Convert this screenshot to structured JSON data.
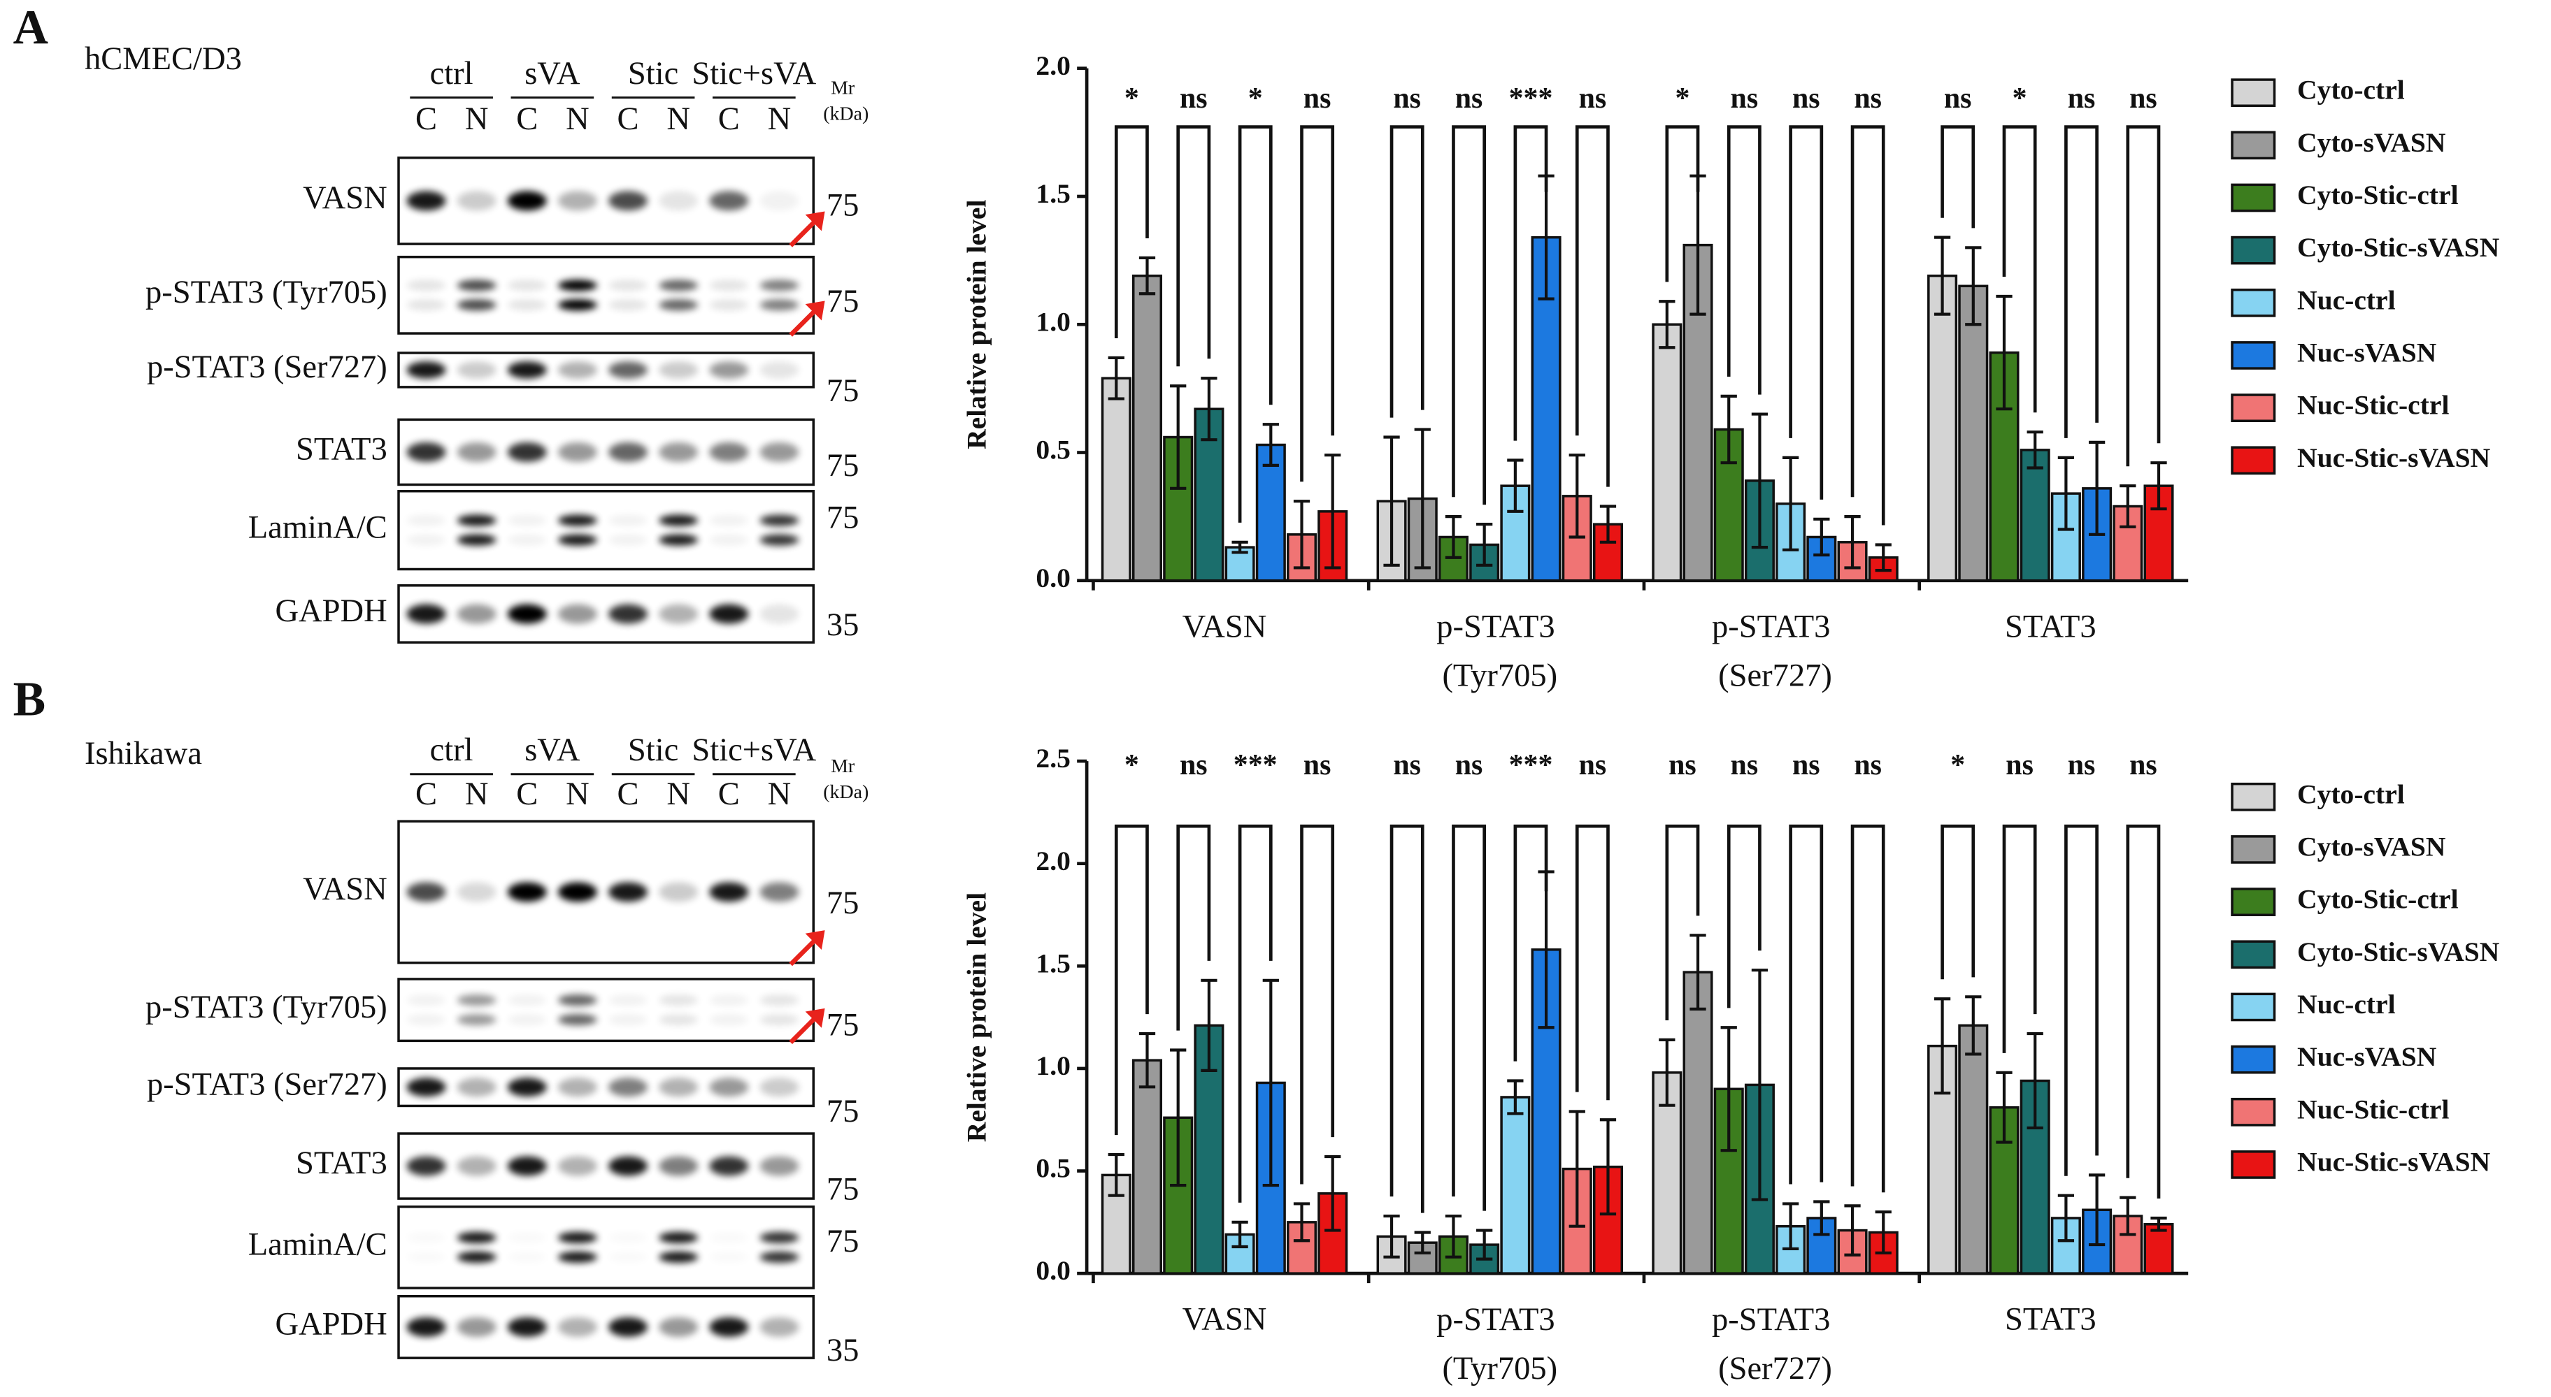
{
  "panels": [
    {
      "letter": "A",
      "cell_line": "hCMEC/D3",
      "groups": [
        "ctrl",
        "sVA",
        "Stic",
        "Stic+sVA"
      ],
      "lanes": [
        "C",
        "N",
        "C",
        "N",
        "C",
        "N",
        "C",
        "N"
      ],
      "mr": "Mr",
      "kda": "(kDa)",
      "rows": [
        {
          "label": "VASN",
          "mw": 75
        },
        {
          "label": "p-STAT3 (Tyr705)",
          "mw": 75
        },
        {
          "label": "p-STAT3 (Ser727)",
          "mw": 75
        },
        {
          "label": "STAT3",
          "mw": 75
        },
        {
          "label": "LaminA/C",
          "mw": 75
        },
        {
          "label": "GAPDH",
          "mw": 35
        }
      ]
    },
    {
      "letter": "B",
      "cell_line": "Ishikawa",
      "groups": [
        "ctrl",
        "sVA",
        "Stic",
        "Stic+sVA"
      ],
      "lanes": [
        "C",
        "N",
        "C",
        "N",
        "C",
        "N",
        "C",
        "N"
      ],
      "mr": "Mr",
      "kda": "(kDa)",
      "rows": [
        {
          "label": "VASN",
          "mw": 75
        },
        {
          "label": "p-STAT3 (Tyr705)",
          "mw": 75
        },
        {
          "label": "p-STAT3 (Ser727)",
          "mw": 75
        },
        {
          "label": "STAT3",
          "mw": 75
        },
        {
          "label": "LaminA/C",
          "mw": 75
        },
        {
          "label": "GAPDH",
          "mw": 35
        }
      ]
    }
  ],
  "chart_data": [
    {
      "type": "bar",
      "y_label": "Relative protein level",
      "categories": [
        "VASN",
        "p-STAT3 (Tyr705)",
        "p-STAT3 (Ser727)",
        "STAT3"
      ],
      "ylim": [
        0,
        2.0
      ],
      "yticks": [
        {
          "value": 0,
          "label": "0.0"
        },
        0.5,
        {
          "value": 1.0,
          "label": "1.0"
        },
        1.5,
        {
          "value": 2.0,
          "label": "2.0"
        }
      ],
      "series": [
        {
          "name": "Cyto-ctrl",
          "color": "#d4d4d4",
          "values": [
            0.79,
            0.31,
            1.0,
            1.19
          ],
          "errors": [
            0.08,
            0.25,
            0.09,
            0.15
          ]
        },
        {
          "name": "Cyto-sVASN",
          "color": "#9a9a9a",
          "values": [
            1.19,
            0.32,
            1.31,
            1.15
          ],
          "errors": [
            0.07,
            0.27,
            0.27,
            0.15
          ]
        },
        {
          "name": "Cyto-Stic-ctrl",
          "color": "#3c7d1e",
          "values": [
            0.56,
            0.17,
            0.59,
            0.89
          ],
          "errors": [
            0.2,
            0.08,
            0.13,
            0.22
          ]
        },
        {
          "name": "Cyto-Stic-sVASN",
          "color": "#1b6e6c",
          "values": [
            0.67,
            0.14,
            0.39,
            0.51
          ],
          "errors": [
            0.12,
            0.08,
            0.26,
            0.07
          ]
        },
        {
          "name": "Nuc-ctrl",
          "color": "#86d3f2",
          "values": [
            0.13,
            0.37,
            0.3,
            0.34
          ],
          "errors": [
            0.02,
            0.1,
            0.18,
            0.14
          ]
        },
        {
          "name": "Nuc-sVASN",
          "color": "#1c79e0",
          "values": [
            0.53,
            1.34,
            0.17,
            0.36
          ],
          "errors": [
            0.08,
            0.24,
            0.07,
            0.18
          ]
        },
        {
          "name": "Nuc-Stic-ctrl",
          "color": "#f07474",
          "values": [
            0.18,
            0.33,
            0.15,
            0.29
          ],
          "errors": [
            0.13,
            0.16,
            0.1,
            0.08
          ]
        },
        {
          "name": "Nuc-Stic-sVASN",
          "color": "#e81414",
          "values": [
            0.27,
            0.22,
            0.09,
            0.37
          ],
          "errors": [
            0.22,
            0.07,
            0.05,
            0.09
          ]
        }
      ],
      "significance": [
        [
          "*",
          "ns",
          "*",
          "ns"
        ],
        [
          "ns",
          "ns",
          "***",
          "ns"
        ],
        [
          "*",
          "ns",
          "ns",
          "ns"
        ],
        [
          "ns",
          "*",
          "ns",
          "ns"
        ]
      ]
    },
    {
      "type": "bar",
      "y_label": "Relative protein level",
      "categories": [
        "VASN",
        "p-STAT3 (Tyr705)",
        "p-STAT3 (Ser727)",
        "STAT3"
      ],
      "ylim": [
        0,
        2.5
      ],
      "yticks": [
        {
          "value": 0,
          "label": "0.0"
        },
        0.5,
        {
          "value": 1.0,
          "label": "1.0"
        },
        1.5,
        {
          "value": 2.0,
          "label": "2.0"
        },
        2.5
      ],
      "series": [
        {
          "name": "Cyto-ctrl",
          "color": "#d4d4d4",
          "values": [
            0.48,
            0.18,
            0.98,
            1.11
          ],
          "errors": [
            0.1,
            0.1,
            0.16,
            0.23
          ]
        },
        {
          "name": "Cyto-sVASN",
          "color": "#9a9a9a",
          "values": [
            1.04,
            0.15,
            1.47,
            1.21
          ],
          "errors": [
            0.13,
            0.05,
            0.18,
            0.14
          ]
        },
        {
          "name": "Cyto-Stic-ctrl",
          "color": "#3c7d1e",
          "values": [
            0.76,
            0.18,
            0.9,
            0.81
          ],
          "errors": [
            0.33,
            0.1,
            0.3,
            0.17
          ]
        },
        {
          "name": "Cyto-Stic-sVASN",
          "color": "#1b6e6c",
          "values": [
            1.21,
            0.14,
            0.92,
            0.94
          ],
          "errors": [
            0.22,
            0.07,
            0.56,
            0.23
          ]
        },
        {
          "name": "Nuc-ctrl",
          "color": "#86d3f2",
          "values": [
            0.19,
            0.86,
            0.23,
            0.27
          ],
          "errors": [
            0.06,
            0.08,
            0.11,
            0.11
          ]
        },
        {
          "name": "Nuc-sVASN",
          "color": "#1c79e0",
          "values": [
            0.93,
            1.58,
            0.27,
            0.31
          ],
          "errors": [
            0.5,
            0.38,
            0.08,
            0.17
          ]
        },
        {
          "name": "Nuc-Stic-ctrl",
          "color": "#f07474",
          "values": [
            0.25,
            0.51,
            0.21,
            0.28
          ],
          "errors": [
            0.09,
            0.28,
            0.12,
            0.09
          ]
        },
        {
          "name": "Nuc-Stic-sVASN",
          "color": "#e81414",
          "values": [
            0.39,
            0.52,
            0.2,
            0.24
          ],
          "errors": [
            0.18,
            0.23,
            0.1,
            0.03
          ]
        }
      ],
      "significance": [
        [
          "*",
          "ns",
          "***",
          "ns"
        ],
        [
          "ns",
          "ns",
          "***",
          "ns"
        ],
        [
          "ns",
          "ns",
          "ns",
          "ns"
        ],
        [
          "*",
          "ns",
          "ns",
          "ns"
        ]
      ]
    }
  ]
}
